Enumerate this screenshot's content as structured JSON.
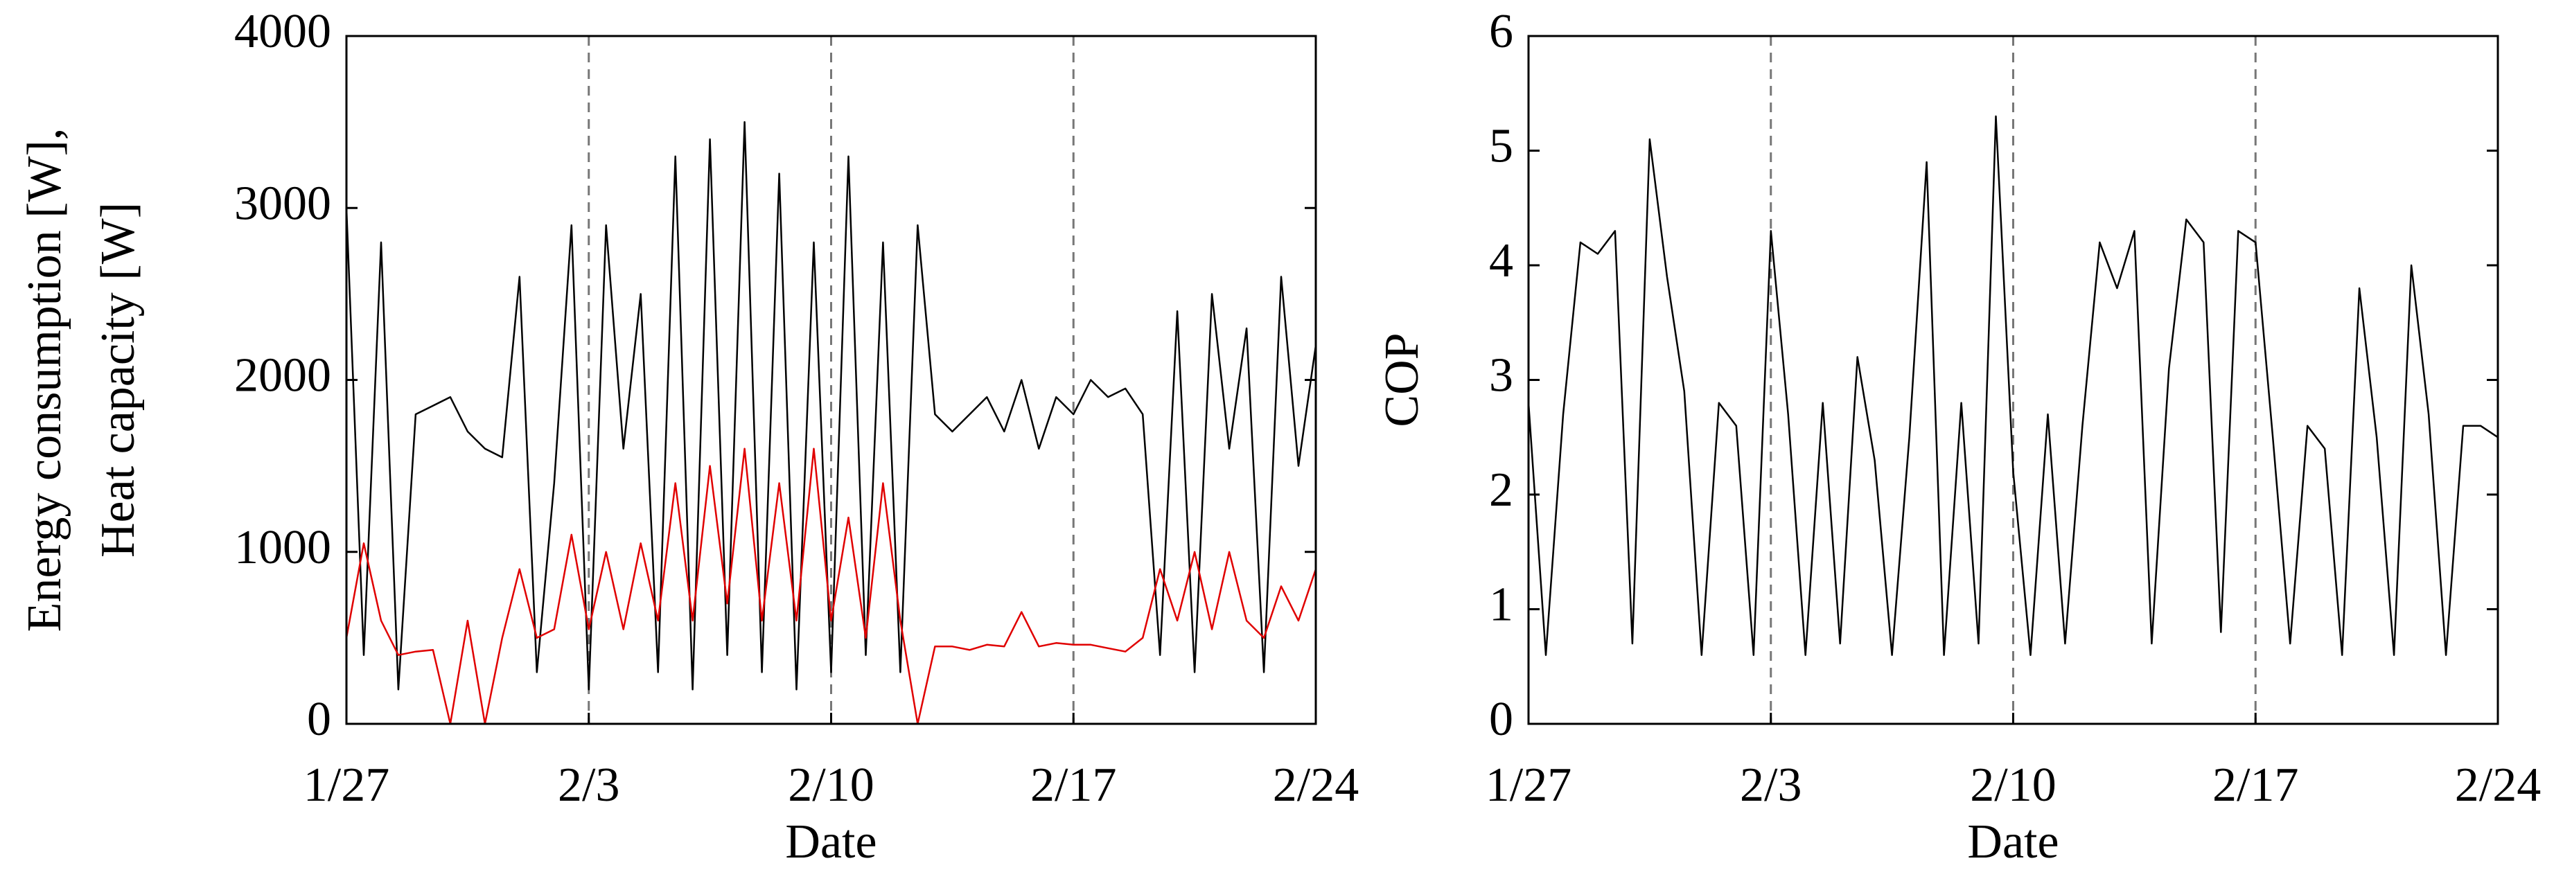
{
  "chart_data": [
    {
      "type": "line",
      "ylabel": [
        "Energy consumption [W],",
        "Heat capacity [W]"
      ],
      "xlabel": "Date",
      "x": [
        0,
        0.5,
        1,
        1.5,
        2,
        2.5,
        3,
        3.5,
        4,
        4.5,
        5,
        5.5,
        6,
        6.5,
        7,
        7.5,
        8,
        8.5,
        9,
        9.5,
        10,
        10.5,
        11,
        11.5,
        12,
        12.5,
        13,
        13.5,
        14,
        14.5,
        15,
        15.5,
        16,
        16.5,
        17,
        17.5,
        18,
        18.5,
        19,
        19.5,
        20,
        20.5,
        21,
        21.5,
        22,
        22.5,
        23,
        23.5,
        24,
        24.5,
        25,
        25.5,
        26,
        26.5,
        27,
        27.5,
        28
      ],
      "series": [
        {
          "color": "#000000",
          "values": [
            3000,
            400,
            2800,
            200,
            1800,
            1850,
            1900,
            1700,
            1600,
            1550,
            2600,
            300,
            1400,
            2900,
            200,
            2900,
            1600,
            2500,
            300,
            3300,
            200,
            3400,
            400,
            3500,
            300,
            3200,
            200,
            2800,
            300,
            3300,
            400,
            2800,
            300,
            2900,
            1800,
            1700,
            1800,
            1900,
            1700,
            2000,
            1600,
            1900,
            1800,
            2000,
            1900,
            1950,
            1800,
            400,
            2400,
            300,
            2500,
            1600,
            2300,
            300,
            2600,
            1500,
            2200
          ]
        },
        {
          "color": "#e00000",
          "values": [
            500,
            1050,
            600,
            400,
            420,
            430,
            0,
            600,
            0,
            500,
            900,
            500,
            550,
            1100,
            550,
            1000,
            550,
            1050,
            600,
            1400,
            600,
            1500,
            700,
            1600,
            600,
            1400,
            600,
            1600,
            600,
            1200,
            500,
            1400,
            600,
            0,
            450,
            450,
            430,
            460,
            450,
            650,
            450,
            470,
            460,
            460,
            440,
            420,
            500,
            900,
            600,
            1000,
            550,
            1000,
            600,
            500,
            800,
            600,
            900
          ]
        }
      ],
      "xlim": [
        0,
        28
      ],
      "xticks": [
        {
          "value": 0,
          "label": "1/27"
        },
        {
          "value": 7,
          "label": "2/3"
        },
        {
          "value": 14,
          "label": "2/10"
        },
        {
          "value": 21,
          "label": "2/17"
        },
        {
          "value": 28,
          "label": "2/24"
        }
      ],
      "ylim": [
        0,
        4000
      ],
      "yticks": [
        0,
        1000,
        2000,
        3000,
        4000
      ],
      "grid": "x-dashed"
    },
    {
      "type": "line",
      "ylabel": [
        "COP"
      ],
      "xlabel": "Date",
      "x": [
        0,
        0.5,
        1,
        1.5,
        2,
        2.5,
        3,
        3.5,
        4,
        4.5,
        5,
        5.5,
        6,
        6.5,
        7,
        7.5,
        8,
        8.5,
        9,
        9.5,
        10,
        10.5,
        11,
        11.5,
        12,
        12.5,
        13,
        13.5,
        14,
        14.5,
        15,
        15.5,
        16,
        16.5,
        17,
        17.5,
        18,
        18.5,
        19,
        19.5,
        20,
        20.5,
        21,
        21.5,
        22,
        22.5,
        23,
        23.5,
        24,
        24.5,
        25,
        25.5,
        26,
        26.5,
        27,
        27.5,
        28
      ],
      "series": [
        {
          "color": "#000000",
          "values": [
            2.8,
            0.6,
            2.7,
            4.2,
            4.1,
            4.3,
            0.7,
            5.1,
            3.9,
            2.9,
            0.6,
            2.8,
            2.6,
            0.6,
            4.3,
            2.7,
            0.6,
            2.8,
            0.7,
            3.2,
            2.3,
            0.6,
            2.5,
            4.9,
            0.6,
            2.8,
            0.7,
            5.3,
            2.2,
            0.6,
            2.7,
            0.7,
            2.6,
            4.2,
            3.8,
            4.3,
            0.7,
            3.1,
            4.4,
            4.2,
            0.8,
            4.3,
            4.2,
            2.5,
            0.7,
            2.6,
            2.4,
            0.6,
            3.8,
            2.5,
            0.6,
            4.0,
            2.7,
            0.6,
            2.6,
            2.6,
            2.5
          ]
        }
      ],
      "xlim": [
        0,
        28
      ],
      "xticks": [
        {
          "value": 0,
          "label": "1/27"
        },
        {
          "value": 7,
          "label": "2/3"
        },
        {
          "value": 14,
          "label": "2/10"
        },
        {
          "value": 21,
          "label": "2/17"
        },
        {
          "value": 28,
          "label": "2/24"
        }
      ],
      "ylim": [
        0,
        6
      ],
      "yticks": [
        0,
        1,
        2,
        3,
        4,
        5,
        6
      ],
      "grid": "x-dashed"
    }
  ]
}
